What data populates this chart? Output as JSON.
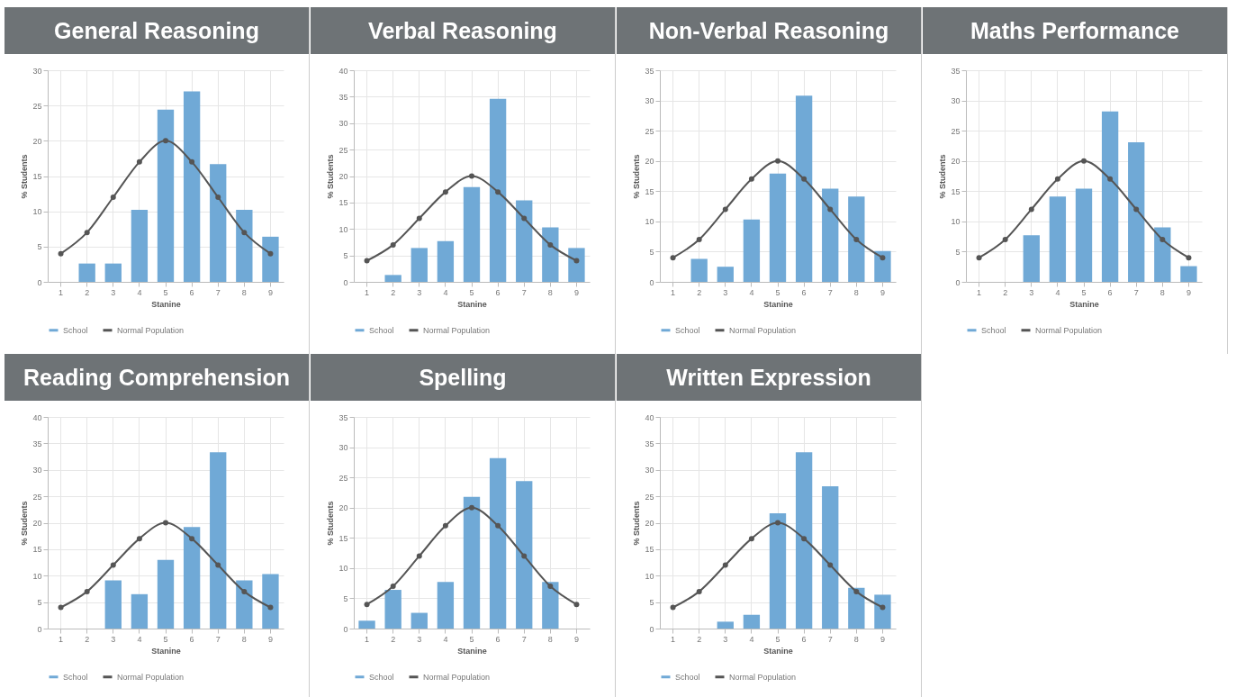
{
  "chart_data": [
    {
      "type": "bar",
      "title": "General Reasoning",
      "xlabel": "Stanine",
      "ylabel": "% Students",
      "categories": [
        "1",
        "2",
        "3",
        "4",
        "5",
        "6",
        "7",
        "8",
        "9"
      ],
      "ylim": [
        0,
        30
      ],
      "yticks": [
        0,
        5,
        10,
        15,
        20,
        25,
        30
      ],
      "grid": true,
      "legend": "bottom",
      "marker": "circle",
      "series": [
        {
          "name": "School",
          "type": "bar",
          "color": "#70a9d6",
          "values": [
            0,
            2.6,
            2.6,
            10.2,
            24.4,
            27.0,
            16.7,
            10.2,
            6.4
          ]
        },
        {
          "name": "Normal Population",
          "type": "line",
          "color": "#555555",
          "values": [
            4,
            7,
            12,
            17,
            20,
            17,
            12,
            7,
            4
          ]
        }
      ]
    },
    {
      "type": "bar",
      "title": "Verbal Reasoning",
      "xlabel": "Stanine",
      "ylabel": "% Students",
      "categories": [
        "1",
        "2",
        "3",
        "4",
        "5",
        "6",
        "7",
        "8",
        "9"
      ],
      "ylim": [
        0,
        40
      ],
      "yticks": [
        0,
        5,
        10,
        15,
        20,
        25,
        30,
        35,
        40
      ],
      "grid": true,
      "legend": "bottom",
      "marker": "circle",
      "series": [
        {
          "name": "School",
          "type": "bar",
          "color": "#70a9d6",
          "values": [
            0,
            1.3,
            6.4,
            7.7,
            17.9,
            34.6,
            15.4,
            10.3,
            6.4
          ]
        },
        {
          "name": "Normal Population",
          "type": "line",
          "color": "#555555",
          "values": [
            4,
            7,
            12,
            17,
            20,
            17,
            12,
            7,
            4
          ]
        }
      ]
    },
    {
      "type": "bar",
      "title": "Non-Verbal Reasoning",
      "xlabel": "Stanine",
      "ylabel": "% Students",
      "categories": [
        "1",
        "2",
        "3",
        "4",
        "5",
        "6",
        "7",
        "8",
        "9"
      ],
      "ylim": [
        0,
        35
      ],
      "yticks": [
        0,
        5,
        10,
        15,
        20,
        25,
        30,
        35
      ],
      "grid": true,
      "legend": "bottom",
      "marker": "circle",
      "series": [
        {
          "name": "School",
          "type": "bar",
          "color": "#70a9d6",
          "values": [
            0,
            3.8,
            2.5,
            10.3,
            17.9,
            30.8,
            15.4,
            14.1,
            5.1
          ]
        },
        {
          "name": "Normal Population",
          "type": "line",
          "color": "#555555",
          "values": [
            4,
            7,
            12,
            17,
            20,
            17,
            12,
            7,
            4
          ]
        }
      ]
    },
    {
      "type": "bar",
      "title": "Maths Performance",
      "xlabel": "Stanine",
      "ylabel": "% Students",
      "categories": [
        "1",
        "2",
        "3",
        "4",
        "5",
        "6",
        "7",
        "8",
        "9"
      ],
      "ylim": [
        0,
        35
      ],
      "yticks": [
        0,
        5,
        10,
        15,
        20,
        25,
        30,
        35
      ],
      "grid": true,
      "legend": "bottom",
      "marker": "circle",
      "series": [
        {
          "name": "School",
          "type": "bar",
          "color": "#70a9d6",
          "values": [
            0,
            0,
            7.7,
            14.1,
            15.4,
            28.2,
            23.1,
            9.0,
            2.6
          ]
        },
        {
          "name": "Normal Population",
          "type": "line",
          "color": "#555555",
          "values": [
            4,
            7,
            12,
            17,
            20,
            17,
            12,
            7,
            4
          ]
        }
      ]
    },
    {
      "type": "bar",
      "title": "Reading Comprehension",
      "xlabel": "Stanine",
      "ylabel": "% Students",
      "categories": [
        "1",
        "2",
        "3",
        "4",
        "5",
        "6",
        "7",
        "8",
        "9"
      ],
      "ylim": [
        0,
        40
      ],
      "yticks": [
        0,
        5,
        10,
        15,
        20,
        25,
        30,
        35,
        40
      ],
      "grid": true,
      "legend": "bottom",
      "marker": "circle",
      "series": [
        {
          "name": "School",
          "type": "bar",
          "color": "#70a9d6",
          "values": [
            0,
            0,
            9.1,
            6.5,
            13.0,
            19.2,
            33.3,
            9.1,
            10.3
          ]
        },
        {
          "name": "Normal Population",
          "type": "line",
          "color": "#555555",
          "values": [
            4,
            7,
            12,
            17,
            20,
            17,
            12,
            7,
            4
          ]
        }
      ]
    },
    {
      "type": "bar",
      "title": "Spelling",
      "xlabel": "Stanine",
      "ylabel": "% Students",
      "categories": [
        "1",
        "2",
        "3",
        "4",
        "5",
        "6",
        "7",
        "8",
        "9"
      ],
      "ylim": [
        0,
        35
      ],
      "yticks": [
        0,
        5,
        10,
        15,
        20,
        25,
        30,
        35
      ],
      "grid": true,
      "legend": "bottom",
      "marker": "circle",
      "series": [
        {
          "name": "School",
          "type": "bar",
          "color": "#70a9d6",
          "values": [
            1.3,
            6.4,
            2.6,
            7.7,
            21.8,
            28.2,
            24.4,
            7.7,
            0
          ]
        },
        {
          "name": "Normal Population",
          "type": "line",
          "color": "#555555",
          "values": [
            4,
            7,
            12,
            17,
            20,
            17,
            12,
            7,
            4
          ]
        }
      ]
    },
    {
      "type": "bar",
      "title": "Written Expression",
      "xlabel": "Stanine",
      "ylabel": "% Students",
      "categories": [
        "1",
        "2",
        "3",
        "4",
        "5",
        "6",
        "7",
        "8",
        "9"
      ],
      "ylim": [
        0,
        40
      ],
      "yticks": [
        0,
        5,
        10,
        15,
        20,
        25,
        30,
        35,
        40
      ],
      "grid": true,
      "legend": "bottom",
      "marker": "circle",
      "series": [
        {
          "name": "School",
          "type": "bar",
          "color": "#70a9d6",
          "values": [
            0,
            0,
            1.3,
            2.6,
            21.8,
            33.3,
            26.9,
            7.7,
            6.4
          ]
        },
        {
          "name": "Normal Population",
          "type": "line",
          "color": "#555555",
          "values": [
            4,
            7,
            12,
            17,
            20,
            17,
            12,
            7,
            4
          ]
        }
      ]
    }
  ]
}
